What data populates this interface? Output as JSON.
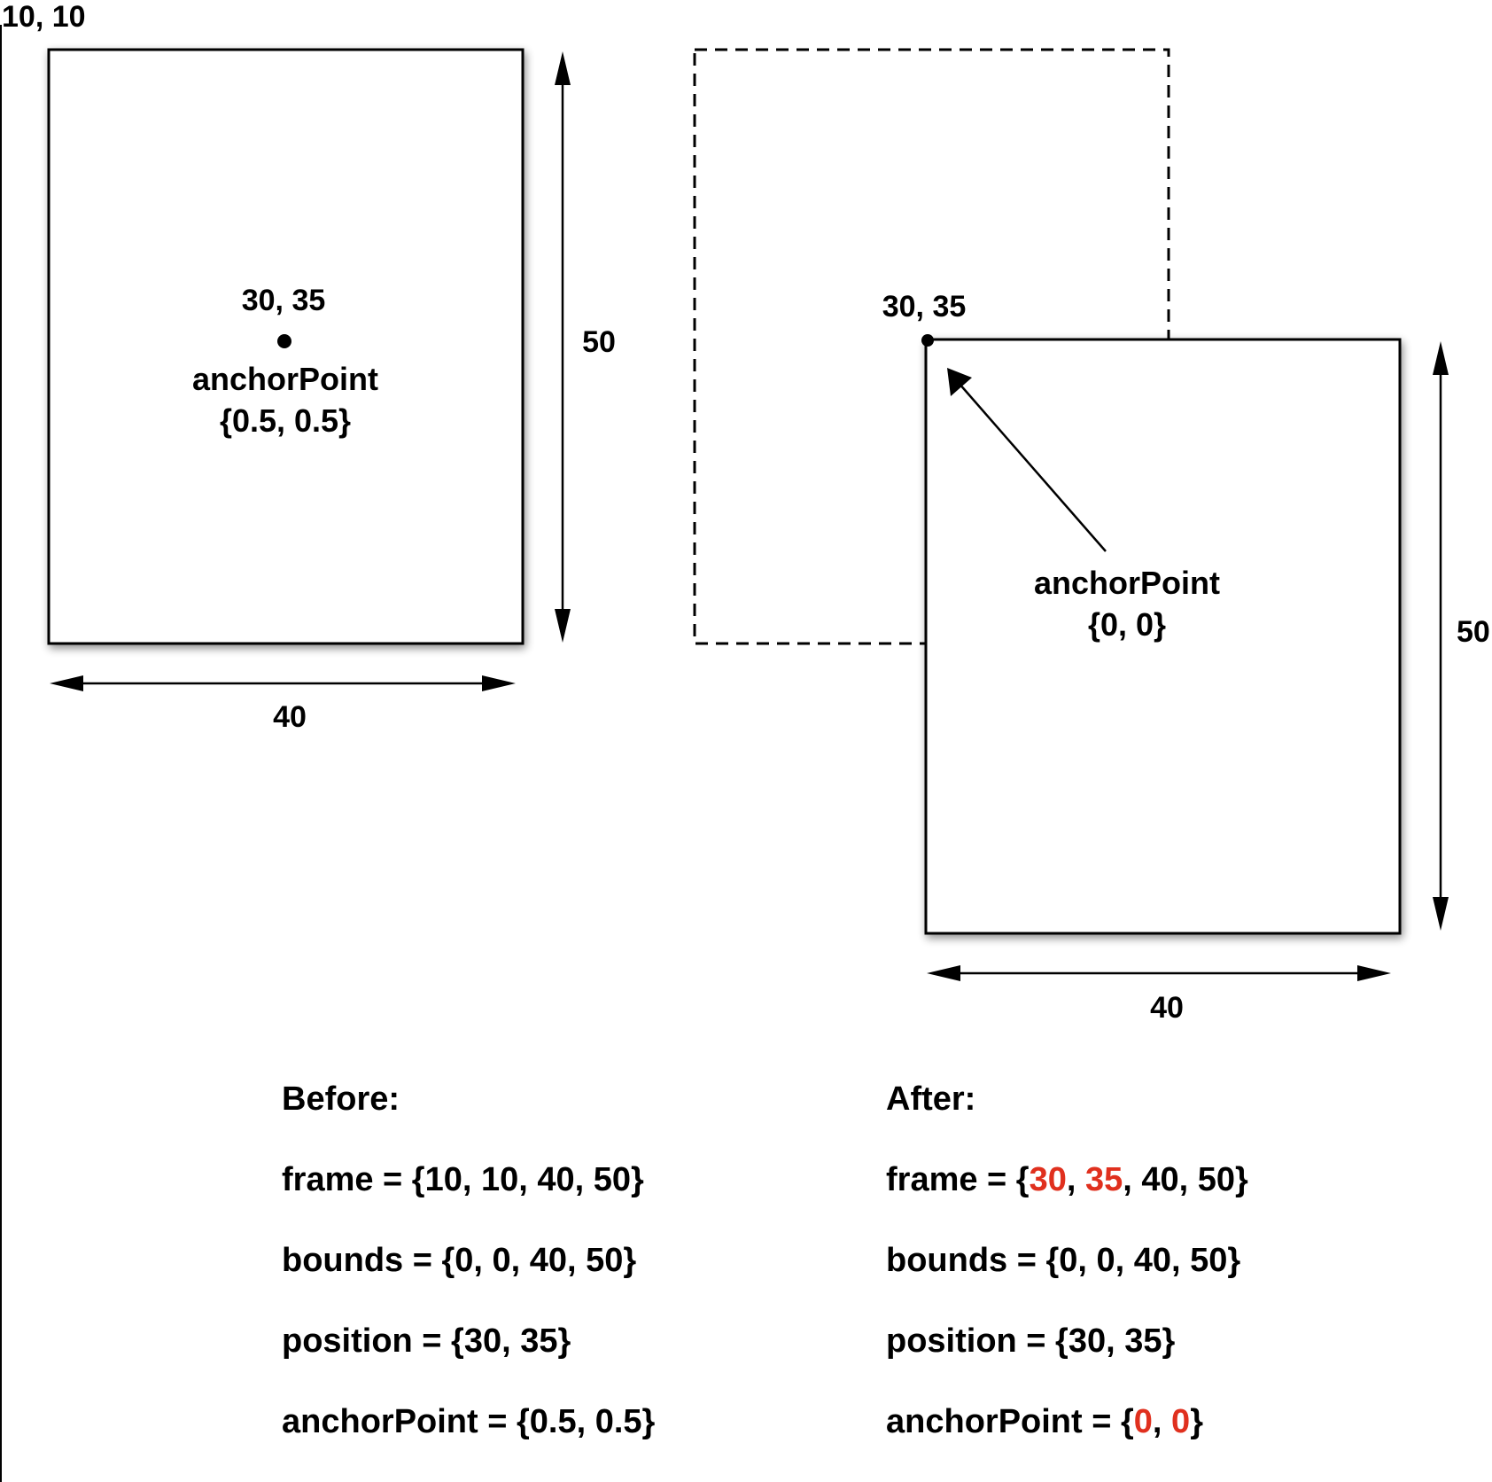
{
  "colors": {
    "ink": "#000000",
    "highlight": "#e0301e",
    "background": "#ffffff"
  },
  "left_diagram": {
    "origin_label": "10, 10",
    "position_label": "30, 35",
    "anchor_title": "anchorPoint",
    "anchor_value": "{0.5, 0.5}",
    "height_label": "50",
    "width_label": "40"
  },
  "right_diagram": {
    "position_label": "30, 35",
    "anchor_title": "anchorPoint",
    "anchor_value": "{0, 0}",
    "height_label": "50",
    "width_label": "40"
  },
  "before": {
    "title": "Before:",
    "frame": "frame = {10, 10, 40, 50}",
    "bounds": "bounds = {0, 0, 40, 50}",
    "position": "position = {30, 35}",
    "anchor": "anchorPoint = {0.5, 0.5}"
  },
  "after": {
    "title": "After:",
    "frame_prefix": "frame = {",
    "frame_x": "30",
    "frame_sep1": ", ",
    "frame_y": "35",
    "frame_rest": ", 40, 50}",
    "bounds": "bounds = {0, 0, 40, 50}",
    "position": "position = {30, 35}",
    "anchor_prefix": "anchorPoint = {",
    "anchor_x": "0",
    "anchor_sep": ", ",
    "anchor_y": "0",
    "anchor_suffix": "}"
  }
}
